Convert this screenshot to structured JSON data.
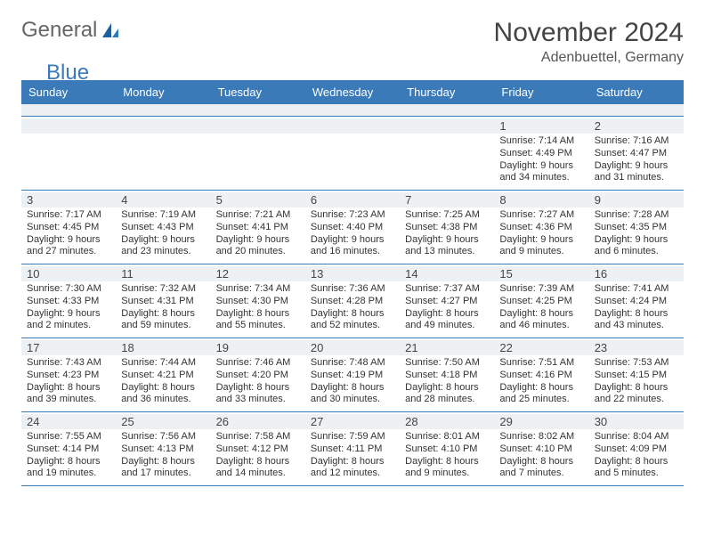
{
  "logo": {
    "text1": "General",
    "text2": "Blue"
  },
  "title": {
    "month": "November 2024",
    "location": "Adenbuettel, Germany"
  },
  "colors": {
    "header_bg": "#3a7ab8",
    "header_fg": "#ffffff",
    "num_bg": "#eef1f4",
    "rule": "#3a7ab8"
  },
  "day_names": [
    "Sunday",
    "Monday",
    "Tuesday",
    "Wednesday",
    "Thursday",
    "Friday",
    "Saturday"
  ],
  "weeks": [
    [
      {
        "n": "",
        "sr": "",
        "ss": "",
        "dl": ""
      },
      {
        "n": "",
        "sr": "",
        "ss": "",
        "dl": ""
      },
      {
        "n": "",
        "sr": "",
        "ss": "",
        "dl": ""
      },
      {
        "n": "",
        "sr": "",
        "ss": "",
        "dl": ""
      },
      {
        "n": "",
        "sr": "",
        "ss": "",
        "dl": ""
      },
      {
        "n": "1",
        "sr": "Sunrise: 7:14 AM",
        "ss": "Sunset: 4:49 PM",
        "dl": "Daylight: 9 hours and 34 minutes."
      },
      {
        "n": "2",
        "sr": "Sunrise: 7:16 AM",
        "ss": "Sunset: 4:47 PM",
        "dl": "Daylight: 9 hours and 31 minutes."
      }
    ],
    [
      {
        "n": "3",
        "sr": "Sunrise: 7:17 AM",
        "ss": "Sunset: 4:45 PM",
        "dl": "Daylight: 9 hours and 27 minutes."
      },
      {
        "n": "4",
        "sr": "Sunrise: 7:19 AM",
        "ss": "Sunset: 4:43 PM",
        "dl": "Daylight: 9 hours and 23 minutes."
      },
      {
        "n": "5",
        "sr": "Sunrise: 7:21 AM",
        "ss": "Sunset: 4:41 PM",
        "dl": "Daylight: 9 hours and 20 minutes."
      },
      {
        "n": "6",
        "sr": "Sunrise: 7:23 AM",
        "ss": "Sunset: 4:40 PM",
        "dl": "Daylight: 9 hours and 16 minutes."
      },
      {
        "n": "7",
        "sr": "Sunrise: 7:25 AM",
        "ss": "Sunset: 4:38 PM",
        "dl": "Daylight: 9 hours and 13 minutes."
      },
      {
        "n": "8",
        "sr": "Sunrise: 7:27 AM",
        "ss": "Sunset: 4:36 PM",
        "dl": "Daylight: 9 hours and 9 minutes."
      },
      {
        "n": "9",
        "sr": "Sunrise: 7:28 AM",
        "ss": "Sunset: 4:35 PM",
        "dl": "Daylight: 9 hours and 6 minutes."
      }
    ],
    [
      {
        "n": "10",
        "sr": "Sunrise: 7:30 AM",
        "ss": "Sunset: 4:33 PM",
        "dl": "Daylight: 9 hours and 2 minutes."
      },
      {
        "n": "11",
        "sr": "Sunrise: 7:32 AM",
        "ss": "Sunset: 4:31 PM",
        "dl": "Daylight: 8 hours and 59 minutes."
      },
      {
        "n": "12",
        "sr": "Sunrise: 7:34 AM",
        "ss": "Sunset: 4:30 PM",
        "dl": "Daylight: 8 hours and 55 minutes."
      },
      {
        "n": "13",
        "sr": "Sunrise: 7:36 AM",
        "ss": "Sunset: 4:28 PM",
        "dl": "Daylight: 8 hours and 52 minutes."
      },
      {
        "n": "14",
        "sr": "Sunrise: 7:37 AM",
        "ss": "Sunset: 4:27 PM",
        "dl": "Daylight: 8 hours and 49 minutes."
      },
      {
        "n": "15",
        "sr": "Sunrise: 7:39 AM",
        "ss": "Sunset: 4:25 PM",
        "dl": "Daylight: 8 hours and 46 minutes."
      },
      {
        "n": "16",
        "sr": "Sunrise: 7:41 AM",
        "ss": "Sunset: 4:24 PM",
        "dl": "Daylight: 8 hours and 43 minutes."
      }
    ],
    [
      {
        "n": "17",
        "sr": "Sunrise: 7:43 AM",
        "ss": "Sunset: 4:23 PM",
        "dl": "Daylight: 8 hours and 39 minutes."
      },
      {
        "n": "18",
        "sr": "Sunrise: 7:44 AM",
        "ss": "Sunset: 4:21 PM",
        "dl": "Daylight: 8 hours and 36 minutes."
      },
      {
        "n": "19",
        "sr": "Sunrise: 7:46 AM",
        "ss": "Sunset: 4:20 PM",
        "dl": "Daylight: 8 hours and 33 minutes."
      },
      {
        "n": "20",
        "sr": "Sunrise: 7:48 AM",
        "ss": "Sunset: 4:19 PM",
        "dl": "Daylight: 8 hours and 30 minutes."
      },
      {
        "n": "21",
        "sr": "Sunrise: 7:50 AM",
        "ss": "Sunset: 4:18 PM",
        "dl": "Daylight: 8 hours and 28 minutes."
      },
      {
        "n": "22",
        "sr": "Sunrise: 7:51 AM",
        "ss": "Sunset: 4:16 PM",
        "dl": "Daylight: 8 hours and 25 minutes."
      },
      {
        "n": "23",
        "sr": "Sunrise: 7:53 AM",
        "ss": "Sunset: 4:15 PM",
        "dl": "Daylight: 8 hours and 22 minutes."
      }
    ],
    [
      {
        "n": "24",
        "sr": "Sunrise: 7:55 AM",
        "ss": "Sunset: 4:14 PM",
        "dl": "Daylight: 8 hours and 19 minutes."
      },
      {
        "n": "25",
        "sr": "Sunrise: 7:56 AM",
        "ss": "Sunset: 4:13 PM",
        "dl": "Daylight: 8 hours and 17 minutes."
      },
      {
        "n": "26",
        "sr": "Sunrise: 7:58 AM",
        "ss": "Sunset: 4:12 PM",
        "dl": "Daylight: 8 hours and 14 minutes."
      },
      {
        "n": "27",
        "sr": "Sunrise: 7:59 AM",
        "ss": "Sunset: 4:11 PM",
        "dl": "Daylight: 8 hours and 12 minutes."
      },
      {
        "n": "28",
        "sr": "Sunrise: 8:01 AM",
        "ss": "Sunset: 4:10 PM",
        "dl": "Daylight: 8 hours and 9 minutes."
      },
      {
        "n": "29",
        "sr": "Sunrise: 8:02 AM",
        "ss": "Sunset: 4:10 PM",
        "dl": "Daylight: 8 hours and 7 minutes."
      },
      {
        "n": "30",
        "sr": "Sunrise: 8:04 AM",
        "ss": "Sunset: 4:09 PM",
        "dl": "Daylight: 8 hours and 5 minutes."
      }
    ]
  ]
}
